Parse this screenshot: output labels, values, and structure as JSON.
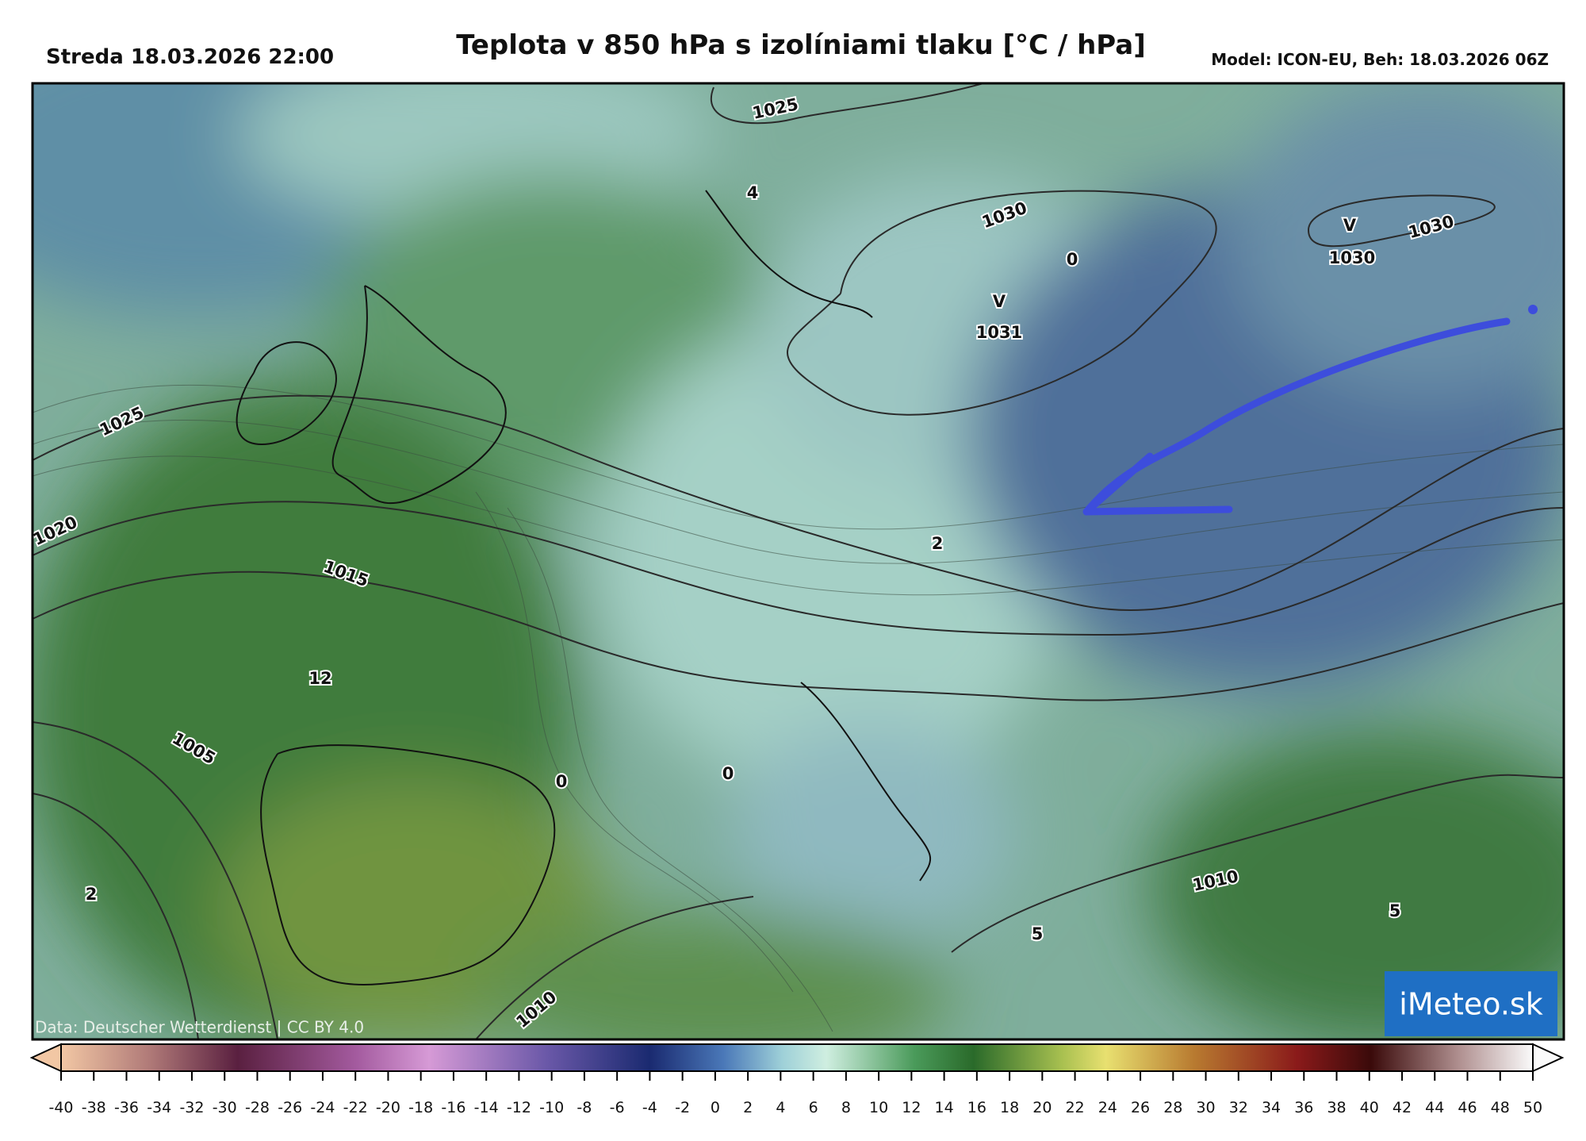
{
  "header": {
    "date": "Streda 18.03.2026 22:00",
    "title": "Teplota v 850 hPa s izolíniami tlaku [°C / hPa]",
    "model": "Model: ICON-EU, Beh: 18.03.2026 06Z"
  },
  "map": {
    "labels": [
      "1025",
      "1030",
      "1030",
      "V",
      "1030",
      "V",
      "1031",
      "0",
      "4",
      "1025",
      "1020",
      "1015",
      "12",
      "1005",
      "2",
      "0",
      "0",
      "2",
      "1010",
      "5",
      "5",
      "1010"
    ],
    "credit": "Data: Deutscher Wetterdienst | CC BY 4.0",
    "logo": "iMeteo.sk"
  },
  "colorbar": {
    "ticks": [
      -40,
      -38,
      -36,
      -34,
      -32,
      -30,
      -28,
      -26,
      -24,
      -22,
      -20,
      -18,
      -16,
      -14,
      -12,
      -10,
      -8,
      -6,
      -4,
      -2,
      0,
      2,
      4,
      6,
      8,
      10,
      12,
      14,
      16,
      18,
      20,
      22,
      24,
      26,
      28,
      30,
      32,
      34,
      36,
      38,
      40,
      42,
      44,
      46,
      48,
      50
    ]
  }
}
